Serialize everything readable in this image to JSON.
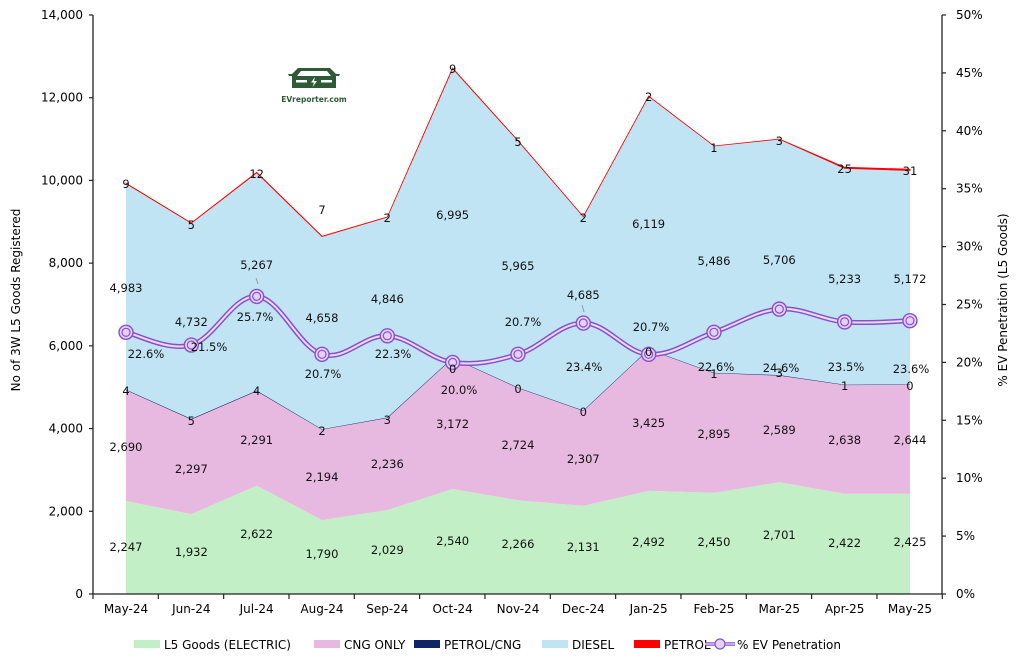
{
  "chart_data": {
    "type": "area",
    "stacked": true,
    "title": "",
    "categories": [
      "May-24",
      "Jun-24",
      "Jul-24",
      "Aug-24",
      "Sep-24",
      "Oct-24",
      "Nov-24",
      "Dec-24",
      "Jan-25",
      "Feb-25",
      "Mar-25",
      "Apr-25",
      "May-25"
    ],
    "ylabel": "No of 3W L5 Goods Registered",
    "y2label": "% EV Penetration (L5 Goods)",
    "ylim": [
      0,
      14000
    ],
    "yticks": [
      "0",
      "2,000",
      "4,000",
      "6,000",
      "8,000",
      "10,000",
      "12,000",
      "14,000"
    ],
    "y2lim": [
      0,
      50
    ],
    "y2ticks": [
      "0%",
      "5%",
      "10%",
      "15%",
      "20%",
      "25%",
      "30%",
      "35%",
      "40%",
      "45%",
      "50%"
    ],
    "grid": false,
    "legend_position": "bottom",
    "series": [
      {
        "name": "L5 Goods (ELECTRIC)",
        "type": "area",
        "color": "#c2efc6",
        "values": [
          2247,
          1932,
          2622,
          1790,
          2029,
          2540,
          2266,
          2131,
          2492,
          2450,
          2701,
          2422,
          2425
        ],
        "labels": [
          "2,247",
          "1,932",
          "2,622",
          "1,790",
          "2,029",
          "2,540",
          "2,266",
          "2,131",
          "2,492",
          "2,450",
          "2,701",
          "2,422",
          "2,425"
        ]
      },
      {
        "name": "CNG ONLY",
        "type": "area",
        "color": "#e8b9e0",
        "values": [
          2690,
          2297,
          2291,
          2194,
          2236,
          3172,
          2724,
          2307,
          3425,
          2895,
          2589,
          2638,
          2644
        ],
        "labels": [
          "2,690",
          "2,297",
          "2,291",
          "2,194",
          "2,236",
          "3,172",
          "2,724",
          "2,307",
          "3,425",
          "2,895",
          "2,589",
          "2,638",
          "2,644"
        ]
      },
      {
        "name": "PETROL/CNG",
        "type": "area",
        "color": "#0d2566",
        "values": [
          4,
          5,
          4,
          2,
          3,
          0,
          0,
          0,
          0,
          1,
          3,
          1,
          0
        ],
        "labels": [
          "4",
          "5",
          "4",
          "2",
          "3",
          "0",
          "0",
          "0",
          "0",
          "1",
          "3",
          "1",
          "0"
        ]
      },
      {
        "name": "DIESEL",
        "type": "area",
        "color": "#c1e4f4",
        "values": [
          4983,
          4732,
          5267,
          4658,
          4846,
          6995,
          5965,
          4685,
          6119,
          5486,
          5706,
          5233,
          5172
        ],
        "labels": [
          "4,983",
          "4,732",
          "5,267",
          "4,658",
          "4,846",
          "6,995",
          "5,965",
          "4,685",
          "6,119",
          "5,486",
          "5,706",
          "5,233",
          "5,172"
        ]
      },
      {
        "name": "PETROL",
        "type": "area",
        "color": "#ff0000",
        "values": [
          9,
          5,
          12,
          7,
          2,
          9,
          5,
          2,
          2,
          1,
          3,
          25,
          31
        ],
        "labels": [
          "9",
          "5",
          "12",
          "7",
          "2",
          "9",
          "5",
          "2",
          "2",
          "1",
          "3",
          "25",
          "31"
        ]
      },
      {
        "name": "% EV Penetration",
        "type": "line",
        "axis": "secondary",
        "color": "#8a4fc9",
        "values": [
          22.6,
          21.5,
          25.7,
          20.7,
          22.3,
          20.0,
          20.7,
          23.4,
          20.7,
          22.6,
          24.6,
          23.5,
          23.6
        ],
        "labels": [
          "22.6%",
          "21.5%",
          "25.7%",
          "20.7%",
          "22.3%",
          "20.0%",
          "20.7%",
          "23.4%",
          "20.7%",
          "22.6%",
          "24.6%",
          "23.5%",
          "23.6%"
        ]
      }
    ]
  },
  "logo": {
    "text": "EVreporter.com",
    "color": "#2e5a36"
  }
}
